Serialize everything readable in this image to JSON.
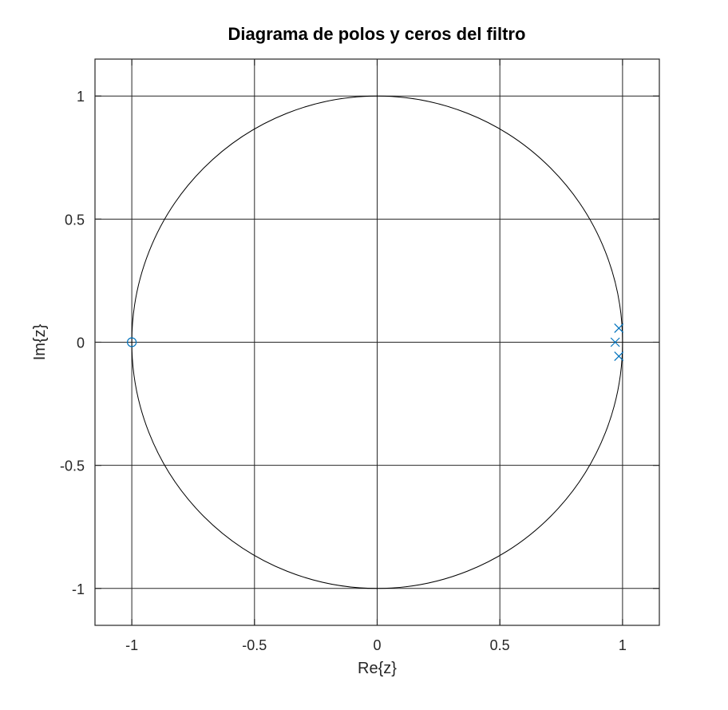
{
  "chart_data": {
    "type": "scatter",
    "title": "Diagrama de polos y ceros del filtro",
    "xlabel": "Re{z}",
    "ylabel": "Im{z}",
    "xlim": [
      -1.15,
      1.15
    ],
    "ylim": [
      -1.15,
      1.15
    ],
    "grid": true,
    "x_ticks": [
      -1,
      -0.5,
      0,
      0.5,
      1
    ],
    "x_tick_labels": [
      "-1",
      "-0.5",
      "0",
      "0.5",
      "1"
    ],
    "y_ticks": [
      -1,
      -0.5,
      0,
      0.5,
      1
    ],
    "y_tick_labels": [
      "-1",
      "-0.5",
      "0",
      "0.5",
      "1"
    ],
    "unit_circle": {
      "center": [
        0,
        0
      ],
      "radius": 1
    },
    "zeros": [
      {
        "x": -1,
        "y": 0
      }
    ],
    "poles": [
      {
        "x": 0.985,
        "y": 0.057
      },
      {
        "x": 0.97,
        "y": 0.0
      },
      {
        "x": 0.985,
        "y": -0.057
      }
    ],
    "colors": {
      "marker": "#0072bd",
      "grid": "#262626",
      "axis": "#262626",
      "circle": "#000000"
    }
  }
}
